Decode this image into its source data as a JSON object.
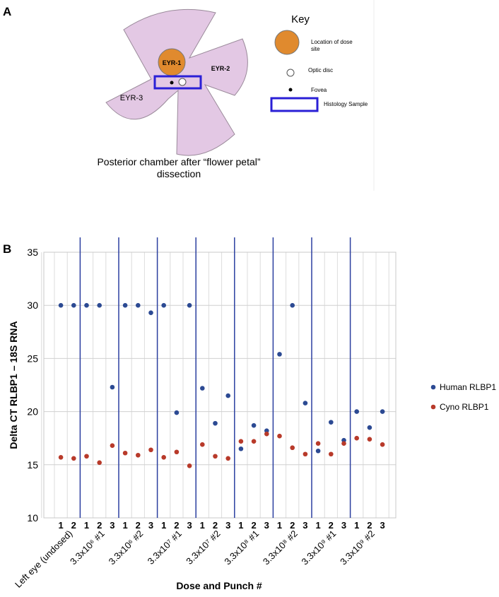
{
  "panel_labels": [
    "A",
    "B"
  ],
  "diagram": {
    "regions": [
      "EYR-1",
      "EYR-2",
      "EYR-3"
    ],
    "caption": [
      "Posterior chamber after “flower petal”",
      "dissection"
    ],
    "key": {
      "title": "Key",
      "items": [
        [
          "Location of dose",
          "site"
        ],
        [
          "Optic disc"
        ],
        [
          "Fovea"
        ],
        [
          "Histology Sample"
        ]
      ]
    }
  },
  "chart_data": {
    "type": "scatter",
    "x_label": "Dose and Punch #",
    "y_label": "Delta CT RLBP1 – 18S RNA",
    "groups": [
      {
        "name": "Left eye (undosed)",
        "punches": [
          "1",
          "2"
        ]
      },
      {
        "name": "3.3x10⁶ #1",
        "punches": [
          "1",
          "2",
          "3"
        ]
      },
      {
        "name": "3.3x10⁶ #2",
        "punches": [
          "1",
          "2",
          "3"
        ]
      },
      {
        "name": "3.3x10⁷ #1",
        "punches": [
          "1",
          "2",
          "3"
        ]
      },
      {
        "name": "3.3x10⁷ #2",
        "punches": [
          "1",
          "2",
          "3"
        ]
      },
      {
        "name": "3.3x10⁸ #1",
        "punches": [
          "1",
          "2",
          "3"
        ]
      },
      {
        "name": "3.3x10⁸ #2",
        "punches": [
          "1",
          "2",
          "3"
        ]
      },
      {
        "name": "3.3x10⁹ #1",
        "punches": [
          "1",
          "2",
          "3"
        ]
      },
      {
        "name": "3.3x10⁹ #2",
        "punches": [
          "1",
          "2",
          "3"
        ]
      }
    ],
    "series": [
      {
        "name": "Human RLBP1",
        "color": "#2c4a93",
        "values": [
          30,
          30,
          30,
          30,
          22.3,
          30,
          30,
          29.3,
          30,
          19.9,
          30,
          22.2,
          18.9,
          21.5,
          16.5,
          18.7,
          18.2,
          25.4,
          30,
          20.8,
          16.3,
          19.0,
          17.3,
          20.0,
          18.5,
          20.0
        ]
      },
      {
        "name": "Cyno RLBP1",
        "color": "#b83a2a",
        "values": [
          15.7,
          15.6,
          15.8,
          15.2,
          16.8,
          16.1,
          15.9,
          16.4,
          15.7,
          16.2,
          14.9,
          16.9,
          15.8,
          15.6,
          17.2,
          17.2,
          17.9,
          17.7,
          16.6,
          16.0,
          17.0,
          16.0,
          17.0,
          17.5,
          17.4,
          16.9
        ]
      }
    ],
    "ylim": [
      10,
      35
    ],
    "yticks": [
      10,
      15,
      20,
      25,
      30,
      35
    ],
    "grid": true
  }
}
